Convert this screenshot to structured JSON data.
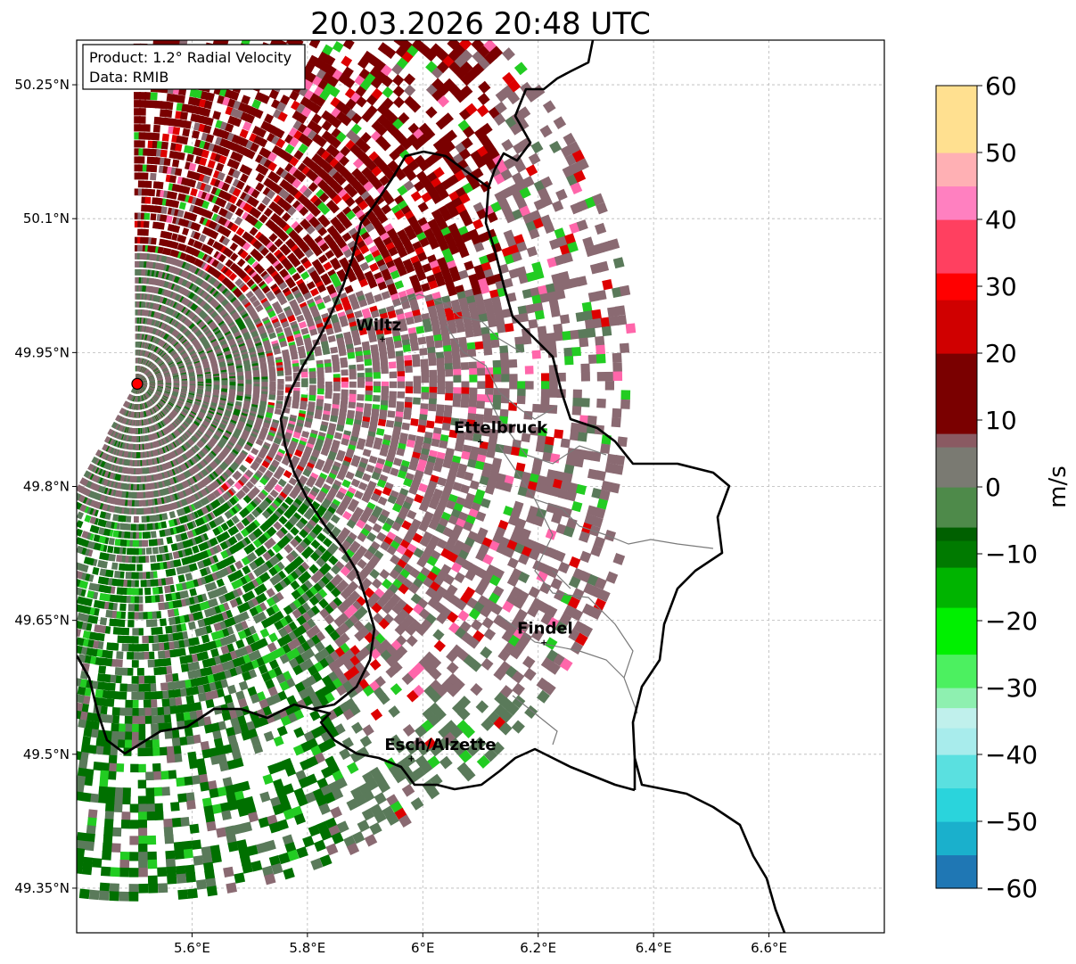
{
  "title": "20.03.2026 20:48 UTC",
  "info_box": {
    "product": "Product: 1.2° Radial Velocity",
    "data": "Data: RMIB"
  },
  "map": {
    "lon_range": [
      5.4,
      6.8
    ],
    "lat_range": [
      49.3,
      50.3
    ],
    "x_ticks": [
      {
        "value": 5.6,
        "label": "5.6°E"
      },
      {
        "value": 5.8,
        "label": "5.8°E"
      },
      {
        "value": 6.0,
        "label": "6°E"
      },
      {
        "value": 6.2,
        "label": "6.2°E"
      },
      {
        "value": 6.4,
        "label": "6.4°E"
      },
      {
        "value": 6.6,
        "label": "6.6°E"
      }
    ],
    "y_ticks": [
      {
        "value": 49.35,
        "label": "49.35°N"
      },
      {
        "value": 49.5,
        "label": "49.5°N"
      },
      {
        "value": 49.65,
        "label": "49.65°N"
      },
      {
        "value": 49.8,
        "label": "49.8°N"
      },
      {
        "value": 49.95,
        "label": "49.95°N"
      },
      {
        "value": 50.1,
        "label": "50.1°N"
      },
      {
        "value": 50.25,
        "label": "50.25°N"
      }
    ],
    "grid": true,
    "radar_site": {
      "lon": 5.505,
      "lat": 49.915,
      "color": "#ff0000"
    },
    "cities": [
      {
        "name": "Wiltz",
        "lon": 5.93,
        "lat": 49.965
      },
      {
        "name": "Ettelbruck",
        "lon": 6.1,
        "lat": 49.85
      },
      {
        "name": "Findel",
        "lon": 6.21,
        "lat": 49.625
      },
      {
        "name": "Esch/Alzette",
        "lon": 5.98,
        "lat": 49.495
      }
    ]
  },
  "colorbar": {
    "label": "m/s",
    "min": -60,
    "max": 60,
    "ticks": [
      {
        "value": 60,
        "label": "60"
      },
      {
        "value": 50,
        "label": "50"
      },
      {
        "value": 40,
        "label": "40"
      },
      {
        "value": 30,
        "label": "30"
      },
      {
        "value": 20,
        "label": "20"
      },
      {
        "value": 10,
        "label": "10"
      },
      {
        "value": 0,
        "label": "0"
      },
      {
        "value": -10,
        "label": "−10"
      },
      {
        "value": -20,
        "label": "−20"
      },
      {
        "value": -30,
        "label": "−30"
      },
      {
        "value": -40,
        "label": "−40"
      },
      {
        "value": -50,
        "label": "−50"
      },
      {
        "value": -60,
        "label": "−60"
      }
    ],
    "stops": [
      {
        "value": -60,
        "color": "#1f77b4"
      },
      {
        "value": -55,
        "color": "#1ab0cc"
      },
      {
        "value": -50,
        "color": "#2ad4dc"
      },
      {
        "value": -45,
        "color": "#5ae0e0"
      },
      {
        "value": -40,
        "color": "#a8ecec"
      },
      {
        "value": -36,
        "color": "#c0f0ec"
      },
      {
        "value": -33,
        "color": "#8ef0b0"
      },
      {
        "value": -30,
        "color": "#4cf060"
      },
      {
        "value": -25,
        "color": "#00f000"
      },
      {
        "value": -18,
        "color": "#00b400"
      },
      {
        "value": -12,
        "color": "#007a00"
      },
      {
        "value": -8,
        "color": "#006000"
      },
      {
        "value": -6,
        "color": "#4e8a4a"
      },
      {
        "value": 0,
        "color": "#7a7a72"
      },
      {
        "value": 6,
        "color": "#8a5a62"
      },
      {
        "value": 8,
        "color": "#7a0000"
      },
      {
        "value": 20,
        "color": "#d00000"
      },
      {
        "value": 28,
        "color": "#ff0000"
      },
      {
        "value": 32,
        "color": "#ff4060"
      },
      {
        "value": 40,
        "color": "#ff80c0"
      },
      {
        "value": 45,
        "color": "#ffb0b4"
      },
      {
        "value": 50,
        "color": "#ffe090"
      },
      {
        "value": 60,
        "color": "#ff9a50"
      }
    ]
  },
  "colors": {
    "far_receding": "#7a0000",
    "near_zero": "#8a6a72",
    "approaching": "#5a7a5a",
    "strong_approaching": "#007000",
    "bright_green": "#22cc22",
    "bright_red": "#dd0000",
    "pink": "#ff66aa"
  }
}
